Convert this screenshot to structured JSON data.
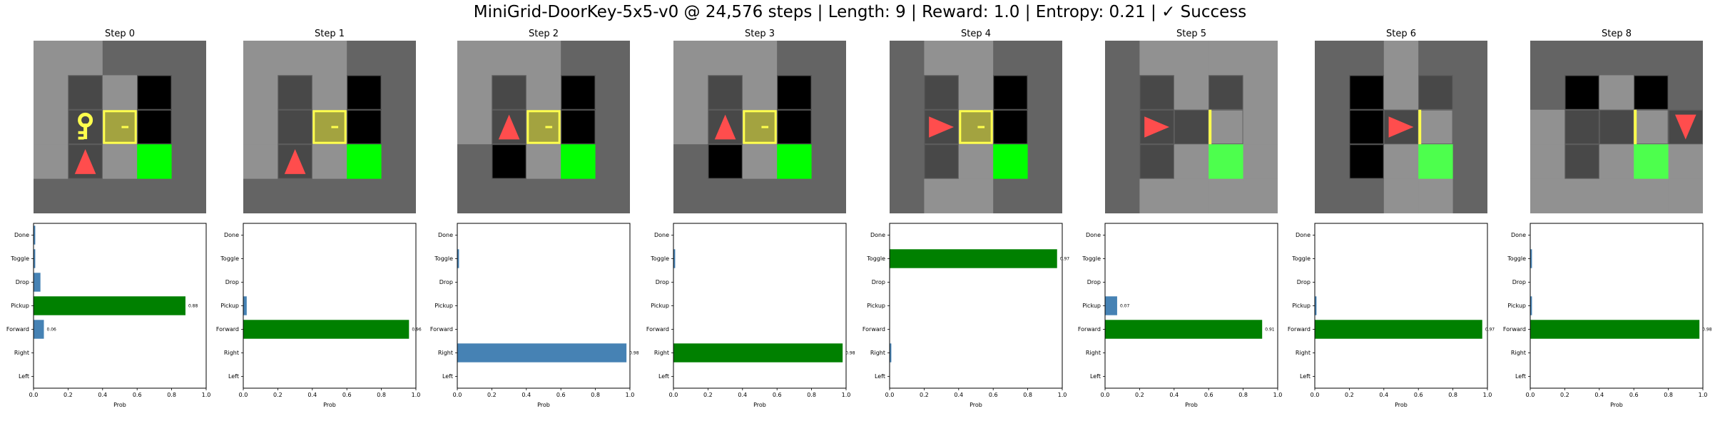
{
  "figure": {
    "title": "MiniGrid-DoorKey-5x5-v0 @ 24,576 steps | Length: 9 | Reward: 1.0 | Entropy: 0.21 | ✓ Success"
  },
  "colors": {
    "wall": "#646464",
    "floor": "#919191",
    "dark_floor": "#484848",
    "unseen": "#000000",
    "goal": "#00ff00",
    "goal_seen": "#4dff4d",
    "agent": "#ff4d4d",
    "key": "#ffff4d",
    "door": "#a3a340",
    "door_border": "#ffff4d",
    "bar_selected": "#008000",
    "bar_other": "#4682b4"
  },
  "steps": [
    {
      "title": "Step 0",
      "grid": [
        [
          "floor",
          "floor",
          "wall",
          "wall",
          "wall"
        ],
        [
          "floor",
          "dark_floor",
          "floor",
          "unseen",
          "wall"
        ],
        [
          "floor",
          "key",
          "door_locked",
          "unseen",
          "wall"
        ],
        [
          "floor",
          "agent_up",
          "floor",
          "goal",
          "wall"
        ],
        [
          "wall",
          "wall",
          "wall",
          "wall",
          "wall"
        ]
      ]
    },
    {
      "title": "Step 1",
      "grid": [
        [
          "floor",
          "floor",
          "floor",
          "wall",
          "wall"
        ],
        [
          "floor",
          "dark_floor",
          "floor",
          "unseen",
          "wall"
        ],
        [
          "floor",
          "dark_floor",
          "door_locked",
          "unseen",
          "wall"
        ],
        [
          "floor",
          "agent_up",
          "floor",
          "goal",
          "wall"
        ],
        [
          "wall",
          "wall",
          "wall",
          "wall",
          "wall"
        ]
      ]
    },
    {
      "title": "Step 2",
      "grid": [
        [
          "floor",
          "floor",
          "floor",
          "wall",
          "wall"
        ],
        [
          "floor",
          "dark_floor",
          "floor",
          "unseen",
          "wall"
        ],
        [
          "floor",
          "agent_up",
          "door_locked",
          "unseen",
          "wall"
        ],
        [
          "wall",
          "unseen",
          "floor",
          "goal",
          "wall"
        ],
        [
          "wall",
          "wall",
          "wall",
          "wall",
          "wall"
        ]
      ]
    },
    {
      "title": "Step 3",
      "grid": [
        [
          "floor",
          "floor",
          "floor",
          "wall",
          "wall"
        ],
        [
          "floor",
          "dark_floor",
          "floor",
          "unseen",
          "wall"
        ],
        [
          "floor",
          "agent_up",
          "door_locked",
          "unseen",
          "wall"
        ],
        [
          "wall",
          "unseen",
          "floor",
          "goal",
          "wall"
        ],
        [
          "wall",
          "wall",
          "wall",
          "wall",
          "wall"
        ]
      ]
    },
    {
      "title": "Step 4",
      "grid": [
        [
          "wall",
          "floor",
          "floor",
          "wall",
          "wall"
        ],
        [
          "wall",
          "dark_floor",
          "floor",
          "unseen",
          "wall"
        ],
        [
          "wall",
          "agent_right",
          "door_locked",
          "unseen",
          "wall"
        ],
        [
          "wall",
          "dark_floor",
          "floor",
          "goal",
          "wall"
        ],
        [
          "wall",
          "floor",
          "floor",
          "wall",
          "wall"
        ]
      ]
    },
    {
      "title": "Step 5",
      "grid": [
        [
          "wall",
          "floor",
          "floor",
          "floor",
          "floor"
        ],
        [
          "wall",
          "dark_floor",
          "floor",
          "dark_floor",
          "floor"
        ],
        [
          "wall",
          "agent_right",
          "dark_floor",
          "door_open",
          "floor"
        ],
        [
          "wall",
          "dark_floor",
          "floor",
          "goal_seen",
          "floor"
        ],
        [
          "wall",
          "floor",
          "floor",
          "floor",
          "floor"
        ]
      ]
    },
    {
      "title": "Step 6",
      "grid": [
        [
          "wall",
          "wall",
          "floor",
          "wall",
          "wall"
        ],
        [
          "wall",
          "unseen",
          "floor",
          "dark_floor",
          "wall"
        ],
        [
          "wall",
          "unseen",
          "agent_right",
          "door_open",
          "wall"
        ],
        [
          "wall",
          "unseen",
          "floor",
          "goal_seen",
          "wall"
        ],
        [
          "wall",
          "wall",
          "floor",
          "floor",
          "wall"
        ]
      ]
    },
    {
      "title": "Step 8",
      "grid": [
        [
          "wall",
          "wall",
          "wall",
          "wall",
          "wall"
        ],
        [
          "wall",
          "unseen",
          "floor",
          "unseen",
          "wall"
        ],
        [
          "floor",
          "dark_floor",
          "dark_floor",
          "door_open",
          "agent_down"
        ],
        [
          "floor",
          "dark_floor",
          "floor",
          "goal_seen",
          "floor"
        ],
        [
          "floor",
          "floor",
          "floor",
          "floor",
          "floor"
        ]
      ]
    }
  ],
  "chart_data": [
    {
      "type": "bar",
      "orientation": "horizontal",
      "title": "Step 0",
      "categories": [
        "Left",
        "Right",
        "Forward",
        "Pickup",
        "Drop",
        "Toggle",
        "Done"
      ],
      "values": [
        0.0,
        0.0,
        0.06,
        0.88,
        0.04,
        0.01,
        0.01
      ],
      "selected": "Pickup",
      "value_labels": {
        "Forward": "0.06",
        "Pickup": "0.88"
      },
      "xlabel": "Prob",
      "xlim": [
        0,
        1
      ],
      "xticks": [
        "0.0",
        "0.2",
        "0.4",
        "0.6",
        "0.8",
        "1.0"
      ]
    },
    {
      "type": "bar",
      "orientation": "horizontal",
      "title": "Step 1",
      "categories": [
        "Left",
        "Right",
        "Forward",
        "Pickup",
        "Drop",
        "Toggle",
        "Done"
      ],
      "values": [
        0.0,
        0.0,
        0.96,
        0.02,
        0.0,
        0.0,
        0.0
      ],
      "selected": "Forward",
      "value_labels": {
        "Forward": "0.96"
      },
      "xlabel": "Prob",
      "xlim": [
        0,
        1
      ],
      "xticks": [
        "0.0",
        "0.2",
        "0.4",
        "0.6",
        "0.8",
        "1.0"
      ]
    },
    {
      "type": "bar",
      "orientation": "horizontal",
      "title": "Step 2",
      "categories": [
        "Left",
        "Right",
        "Forward",
        "Pickup",
        "Drop",
        "Toggle",
        "Done"
      ],
      "values": [
        0.0,
        0.98,
        0.0,
        0.0,
        0.0,
        0.01,
        0.0
      ],
      "selected": "Forward",
      "value_labels": {
        "Right": "0.98"
      },
      "xlabel": "Prob",
      "xlim": [
        0,
        1
      ],
      "xticks": [
        "0.0",
        "0.2",
        "0.4",
        "0.6",
        "0.8",
        "1.0"
      ]
    },
    {
      "type": "bar",
      "orientation": "horizontal",
      "title": "Step 3",
      "categories": [
        "Left",
        "Right",
        "Forward",
        "Pickup",
        "Drop",
        "Toggle",
        "Done"
      ],
      "values": [
        0.0,
        0.98,
        0.0,
        0.0,
        0.0,
        0.01,
        0.0
      ],
      "selected": "Right",
      "value_labels": {
        "Right": "0.98"
      },
      "xlabel": "Prob",
      "xlim": [
        0,
        1
      ],
      "xticks": [
        "0.0",
        "0.2",
        "0.4",
        "0.6",
        "0.8",
        "1.0"
      ]
    },
    {
      "type": "bar",
      "orientation": "horizontal",
      "title": "Step 4",
      "categories": [
        "Left",
        "Right",
        "Forward",
        "Pickup",
        "Drop",
        "Toggle",
        "Done"
      ],
      "values": [
        0.0,
        0.01,
        0.0,
        0.0,
        0.0,
        0.97,
        0.0
      ],
      "selected": "Toggle",
      "value_labels": {
        "Toggle": "0.97"
      },
      "xlabel": "Prob",
      "xlim": [
        0,
        1
      ],
      "xticks": [
        "0.0",
        "0.2",
        "0.4",
        "0.6",
        "0.8",
        "1.0"
      ]
    },
    {
      "type": "bar",
      "orientation": "horizontal",
      "title": "Step 5",
      "categories": [
        "Left",
        "Right",
        "Forward",
        "Pickup",
        "Drop",
        "Toggle",
        "Done"
      ],
      "values": [
        0.0,
        0.0,
        0.91,
        0.07,
        0.0,
        0.0,
        0.0
      ],
      "selected": "Forward",
      "value_labels": {
        "Pickup": "0.07",
        "Forward": "0.91"
      },
      "xlabel": "Prob",
      "xlim": [
        0,
        1
      ],
      "xticks": [
        "0.0",
        "0.2",
        "0.4",
        "0.6",
        "0.8",
        "1.0"
      ]
    },
    {
      "type": "bar",
      "orientation": "horizontal",
      "title": "Step 6",
      "categories": [
        "Left",
        "Right",
        "Forward",
        "Pickup",
        "Drop",
        "Toggle",
        "Done"
      ],
      "values": [
        0.0,
        0.0,
        0.97,
        0.01,
        0.0,
        0.0,
        0.0
      ],
      "selected": "Forward",
      "value_labels": {
        "Forward": "0.97"
      },
      "xlabel": "Prob",
      "xlim": [
        0,
        1
      ],
      "xticks": [
        "0.0",
        "0.2",
        "0.4",
        "0.6",
        "0.8",
        "1.0"
      ]
    },
    {
      "type": "bar",
      "orientation": "horizontal",
      "title": "Step 8",
      "categories": [
        "Left",
        "Right",
        "Forward",
        "Pickup",
        "Drop",
        "Toggle",
        "Done"
      ],
      "values": [
        0.0,
        0.0,
        0.98,
        0.01,
        0.0,
        0.01,
        0.0
      ],
      "selected": "Forward",
      "value_labels": {
        "Forward": "0.98"
      },
      "xlabel": "Prob",
      "xlim": [
        0,
        1
      ],
      "xticks": [
        "0.0",
        "0.2",
        "0.4",
        "0.6",
        "0.8",
        "1.0"
      ]
    }
  ]
}
